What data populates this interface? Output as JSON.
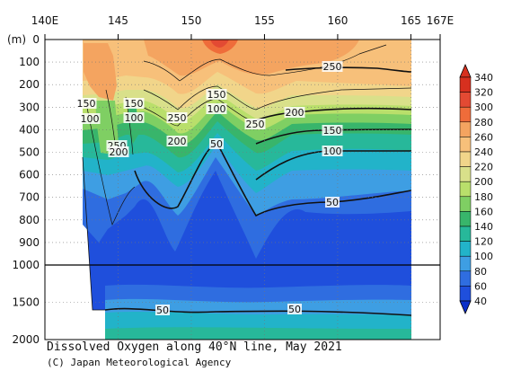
{
  "chart_data": {
    "type": "heatmap",
    "title": "Dissolved Oxygen along 40°N line, May 2021",
    "credit": "(C) Japan Meteorological Agency",
    "x_axis": {
      "ticks": [
        "140E",
        "145",
        "150",
        "155",
        "160",
        "165",
        "167E"
      ],
      "tick_values": [
        140,
        145,
        150,
        155,
        160,
        165,
        167
      ],
      "range": [
        140,
        167
      ]
    },
    "y_axis": {
      "unit_label": "(m)",
      "ticks": [
        "0",
        "100",
        "200",
        "300",
        "400",
        "500",
        "600",
        "700",
        "800",
        "900",
        "1000",
        "1500",
        "2000"
      ],
      "tick_values": [
        0,
        100,
        200,
        300,
        400,
        500,
        600,
        700,
        800,
        900,
        1000,
        1500,
        2000
      ],
      "range": [
        0,
        2000
      ],
      "scale": "piecewise: linear 0–1000 m (upper panel), linear 1000–2000 m (lower panel)"
    },
    "colorbar": {
      "levels": [
        340,
        320,
        300,
        280,
        260,
        240,
        220,
        200,
        180,
        160,
        140,
        120,
        100,
        80,
        60,
        40
      ],
      "colors": [
        "#d7301f",
        "#e34a33",
        "#ef6c3a",
        "#f4a460",
        "#f7c07a",
        "#f1d58a",
        "#d9e08a",
        "#b9df6b",
        "#7fcf63",
        "#38b56b",
        "#27b89a",
        "#22b3c9",
        "#3e9ee3",
        "#2f6de0",
        "#1f4fdc"
      ],
      "below_color": "#0a2fc9",
      "extend": "both"
    },
    "contour_labels": [
      "250",
      "150",
      "100",
      "150",
      "100",
      "250",
      "200",
      "150",
      "100",
      "250",
      "200",
      "50",
      "250",
      "200",
      "150",
      "100",
      "50",
      "50",
      "50"
    ],
    "grid": "dotted",
    "notes_visible": "Separator line at 1000 m between upper and lower depth panels"
  }
}
